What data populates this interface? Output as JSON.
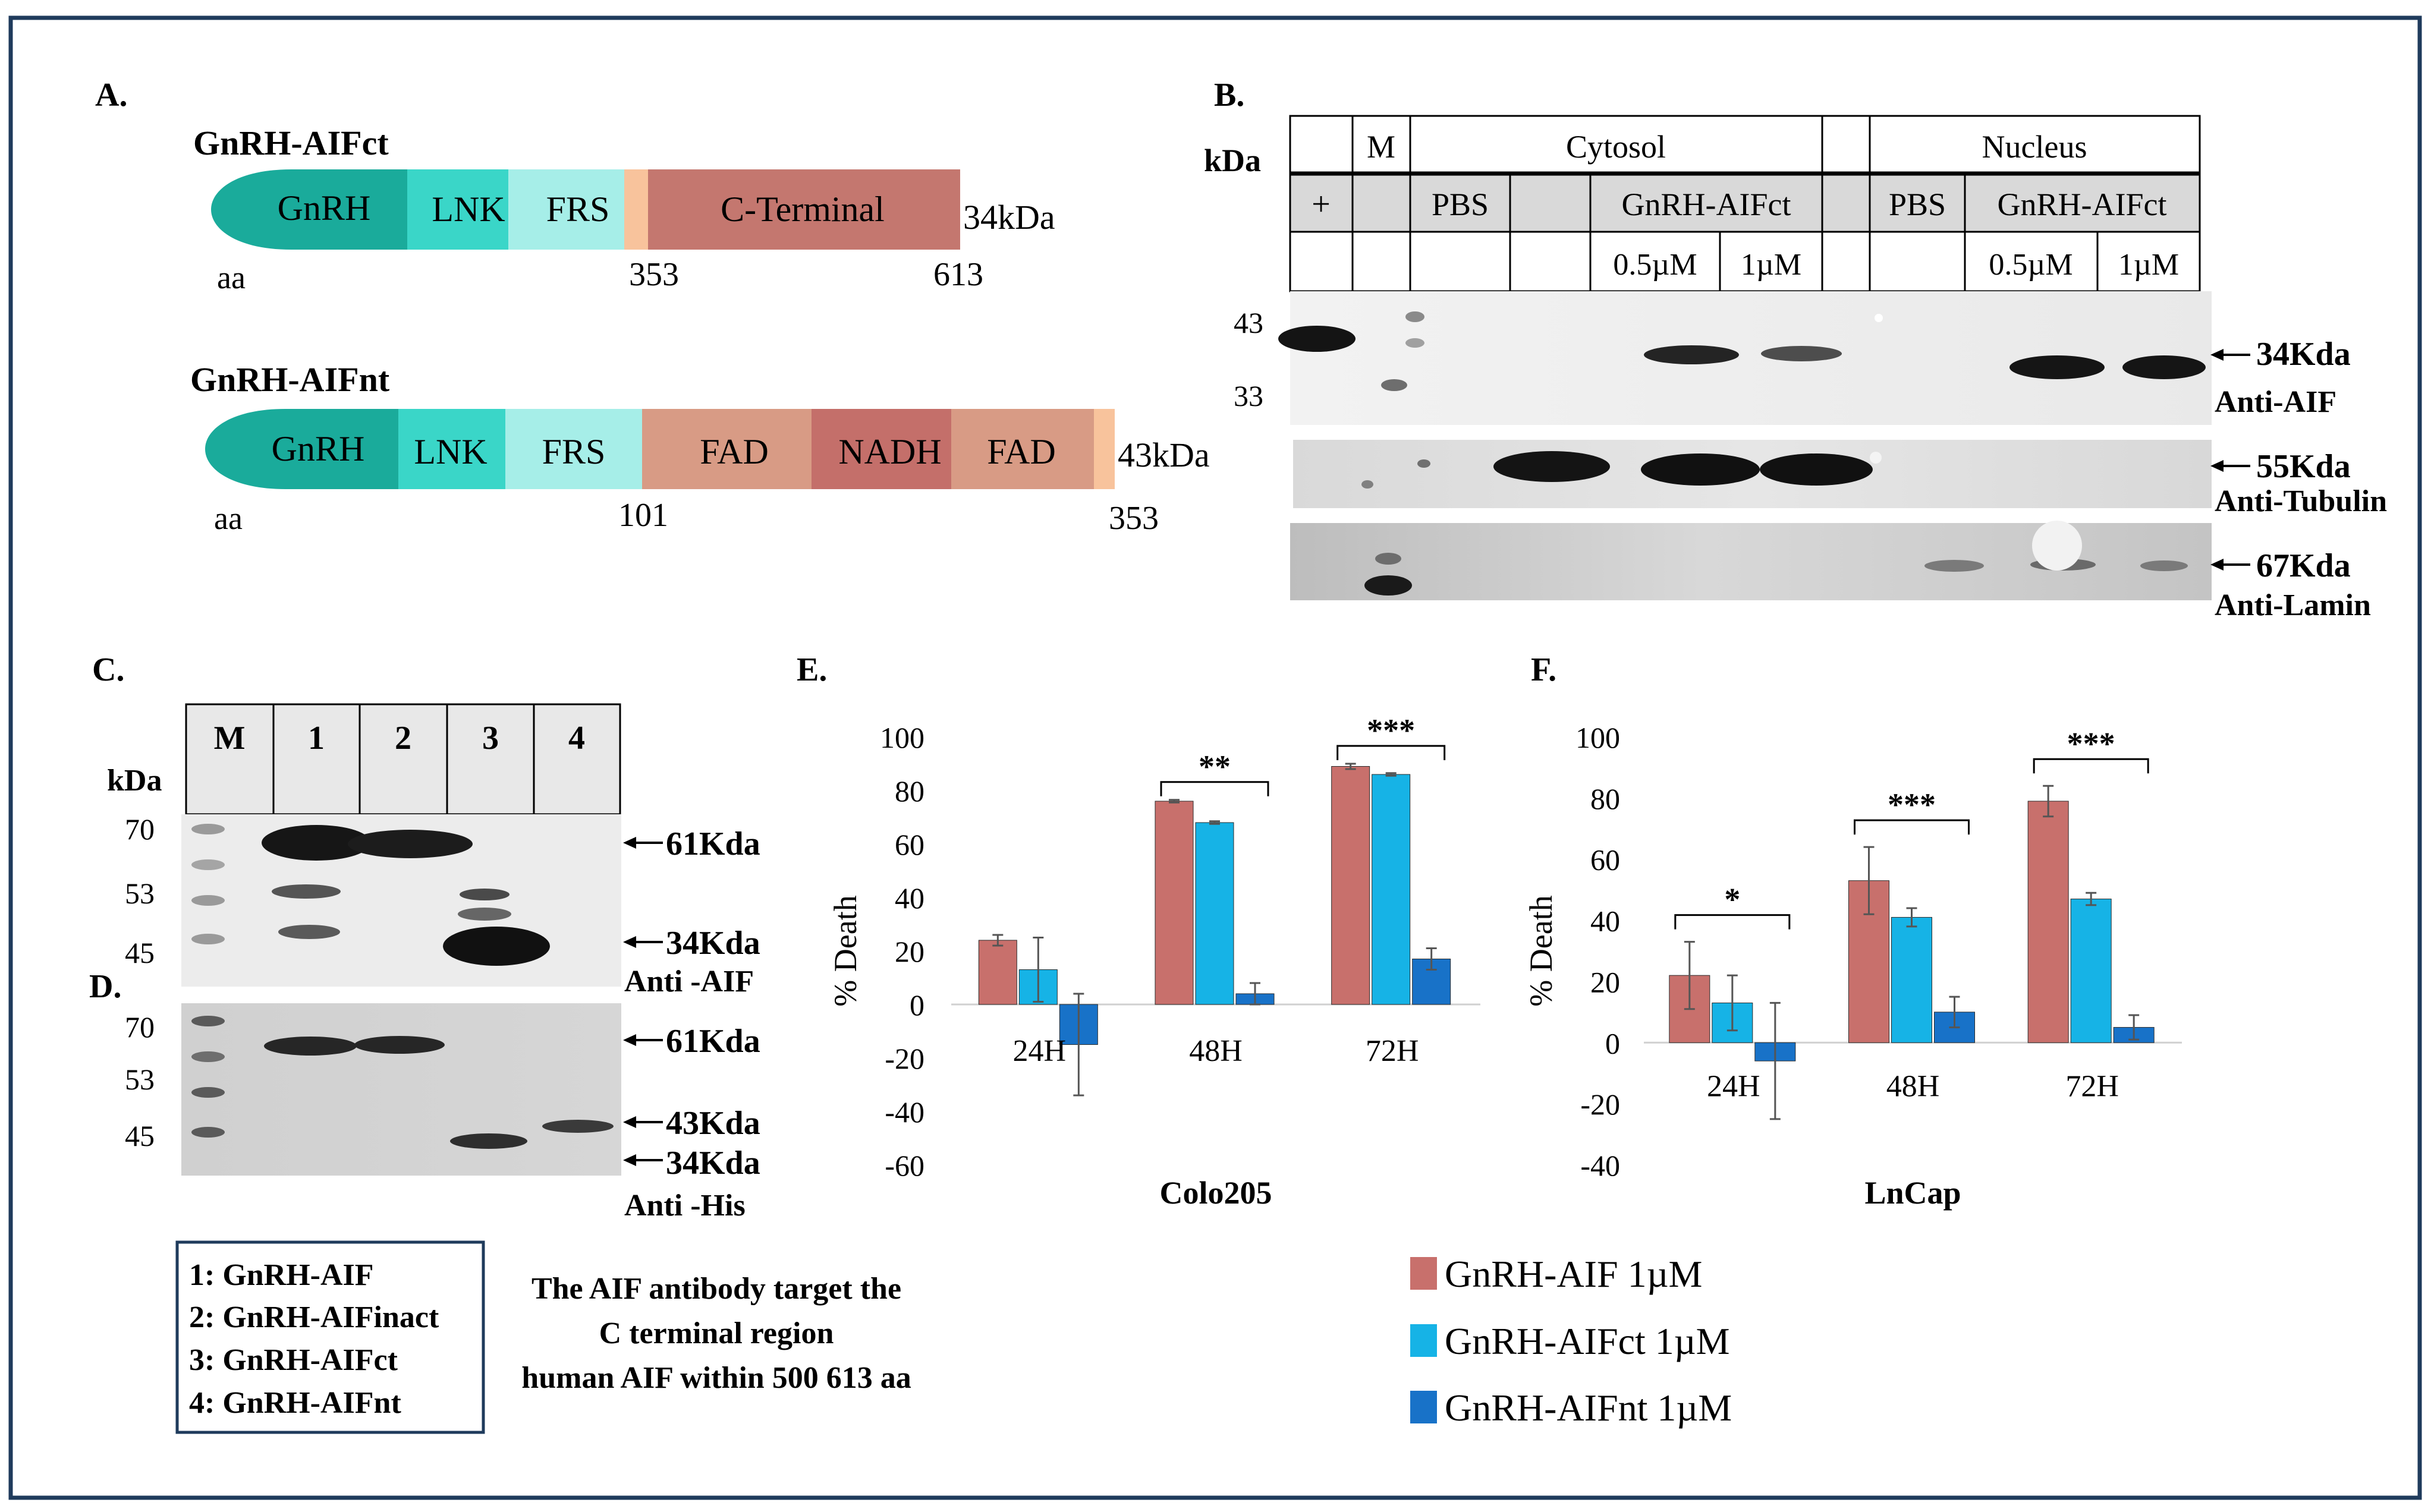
{
  "colors": {
    "teal_dark": "#1aab9b",
    "teal_mid": "#3ad6c8",
    "teal_light": "#a6eee8",
    "peach": "#f8c39c",
    "cterm": "#c4776f",
    "fad": "#d89b85",
    "nadh": "#c46f6a",
    "bar_aif": "#c8706c",
    "bar_ct": "#16b3e6",
    "bar_nt": "#1872c8",
    "header_gray": "#d9d9d9",
    "frame": "#1f3b5c"
  },
  "panelA": {
    "label": "A.",
    "ct": {
      "title": "GnRH-AIFct",
      "segments": [
        "GnRH",
        "LNK",
        "FRS",
        "C-Terminal"
      ],
      "size": "34kDa",
      "aa": "aa",
      "pos_start": "353",
      "pos_end": "613"
    },
    "nt": {
      "title": "GnRH-AIFnt",
      "segments": [
        "GnRH",
        "LNK",
        "FRS",
        "FAD",
        "NADH",
        "FAD"
      ],
      "size": "43kDa",
      "aa": "aa",
      "pos_start": "101",
      "pos_end": "353"
    }
  },
  "panelB": {
    "label": "B.",
    "kda": "kDa",
    "header": {
      "row1": {
        "m": "M",
        "cytosol": "Cytosol",
        "nucleus": "Nucleus"
      },
      "row2": {
        "plus": "+",
        "pbs1": "PBS",
        "gnrh1": "GnRH-AIFct",
        "pbs2": "PBS",
        "gnrh2": "GnRH-AIFct"
      },
      "row3": {
        "c1": "0.5µM",
        "c2": "1µM",
        "c3": "0.5µM",
        "c4": "1µM"
      }
    },
    "markers": [
      "43",
      "33"
    ],
    "bands": [
      {
        "size": "34Kda",
        "antibody": "Anti-AIF"
      },
      {
        "size": "55Kda",
        "antibody": "Anti-Tubulin"
      },
      {
        "size": "67Kda",
        "antibody": "Anti-Lamin"
      }
    ]
  },
  "panelC": {
    "label": "C.",
    "kda": "kDa",
    "lanes": [
      "M",
      "1",
      "2",
      "3",
      "4"
    ],
    "markers": [
      "70",
      "53",
      "45"
    ],
    "bands": [
      "61Kda",
      "34Kda"
    ],
    "antibody": "Anti -AIF"
  },
  "panelD": {
    "label": "D.",
    "markers": [
      "70",
      "53",
      "45"
    ],
    "bands": [
      "61Kda",
      "43Kda",
      "34Kda"
    ],
    "antibody": "Anti -His"
  },
  "key": [
    "1: GnRH-AIF",
    "2: GnRH-AIFinact",
    "3: GnRH-AIFct",
    "4: GnRH-AIFnt"
  ],
  "note": [
    "The  AIF antibody target the",
    "C terminal region",
    "human AIF within 500 613 aa"
  ],
  "legend": [
    "GnRH-AIF 1µM",
    "GnRH-AIFct 1µM",
    "GnRH-AIFnt 1µM"
  ],
  "chart_data": [
    {
      "type": "bar",
      "panel": "E.",
      "xlabel": "Colo205",
      "ylabel": "% Death",
      "ylim": [
        -60,
        100
      ],
      "yticks": [
        "100",
        "80",
        "60",
        "40",
        "20",
        "0",
        "-20",
        "-40",
        "-60"
      ],
      "categories": [
        "24H",
        "48H",
        "72H"
      ],
      "series": [
        {
          "name": "GnRH-AIF 1µM",
          "values": [
            24,
            76,
            89
          ],
          "errors": [
            2,
            0.5,
            1
          ]
        },
        {
          "name": "GnRH-AIFct 1µM",
          "values": [
            13,
            68,
            86
          ],
          "errors": [
            12,
            0.5,
            0.5
          ]
        },
        {
          "name": "GnRH-AIFnt 1µM",
          "values": [
            -15,
            4,
            17
          ],
          "errors": [
            19,
            4,
            4
          ]
        }
      ],
      "significance": [
        "",
        "**",
        "***"
      ]
    },
    {
      "type": "bar",
      "panel": "F.",
      "xlabel": "LnCap",
      "ylabel": "% Death",
      "ylim": [
        -40,
        100
      ],
      "yticks": [
        "100",
        "80",
        "60",
        "40",
        "20",
        "0",
        "-20",
        "-40"
      ],
      "categories": [
        "24H",
        "48H",
        "72H"
      ],
      "series": [
        {
          "name": "GnRH-AIF 1µM",
          "values": [
            22,
            53,
            79
          ],
          "errors": [
            11,
            11,
            5
          ]
        },
        {
          "name": "GnRH-AIFct 1µM",
          "values": [
            13,
            41,
            47
          ],
          "errors": [
            9,
            3,
            2
          ]
        },
        {
          "name": "GnRH-AIFnt 1µM",
          "values": [
            -6,
            10,
            5
          ],
          "errors": [
            19,
            5,
            4
          ]
        }
      ],
      "significance": [
        "*",
        "***",
        "***"
      ]
    }
  ]
}
